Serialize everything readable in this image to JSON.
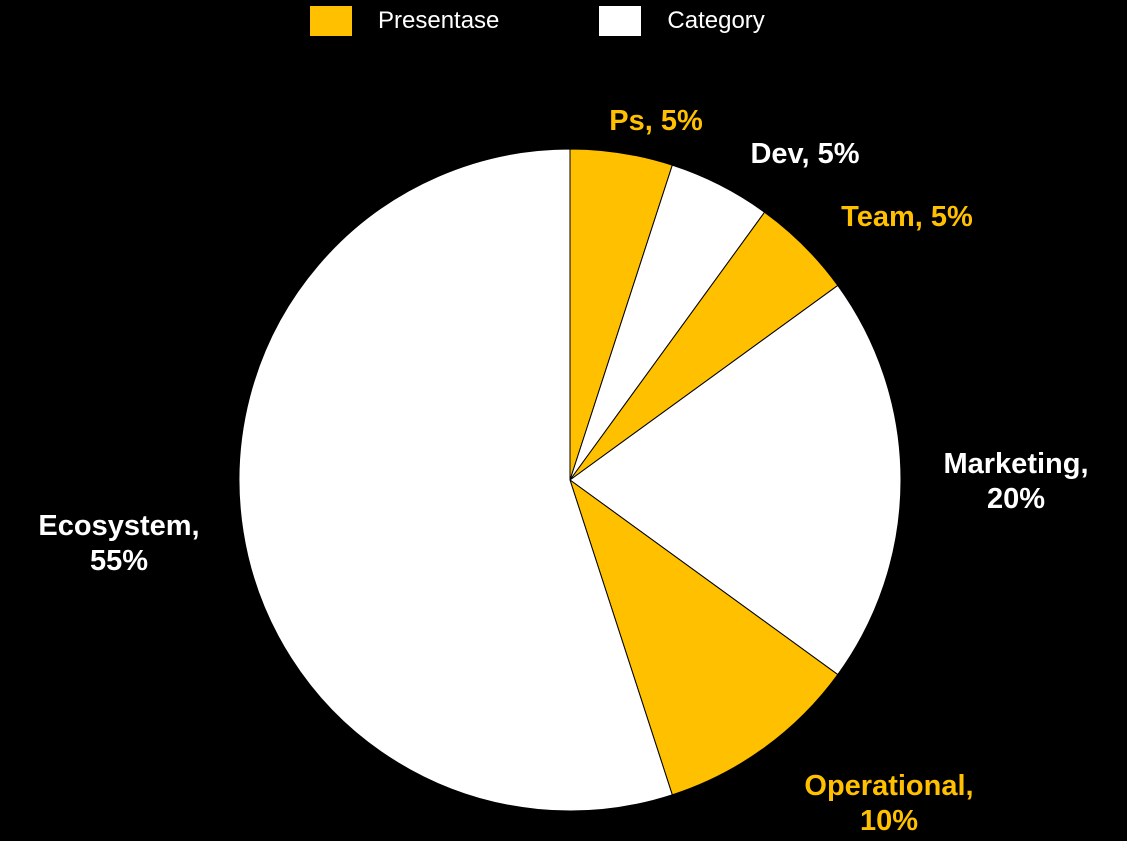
{
  "colors": {
    "background": "#000000",
    "yellow": "#FFC000",
    "white": "#FFFFFF",
    "slice_border": "#000000"
  },
  "legend": {
    "position": "top-center",
    "items": [
      {
        "label": "Presentase",
        "color": "#FFC000"
      },
      {
        "label": "Category",
        "color": "#FFFFFF"
      }
    ]
  },
  "chart_data": {
    "type": "pie",
    "start_angle": "12 o'clock",
    "direction": "clockwise",
    "series_names": [
      "Presentase",
      "Category"
    ],
    "slices": [
      {
        "category": "Ps",
        "value": 5,
        "label_lines": [
          "Ps, 5%"
        ],
        "color": "#FFC000"
      },
      {
        "category": "Dev",
        "value": 5,
        "label_lines": [
          "Dev, 5%"
        ],
        "color": "#FFFFFF"
      },
      {
        "category": "Team",
        "value": 5,
        "label_lines": [
          "Team, 5%"
        ],
        "color": "#FFC000"
      },
      {
        "category": "Marketing",
        "value": 20,
        "label_lines": [
          "Marketing,",
          "20%"
        ],
        "color": "#FFFFFF"
      },
      {
        "category": "Operational",
        "value": 10,
        "label_lines": [
          "Operational,",
          "10%"
        ],
        "color": "#FFC000"
      },
      {
        "category": "Ecosystem",
        "value": 55,
        "label_lines": [
          "Ecosystem,",
          "55%"
        ],
        "color": "#FFFFFF"
      }
    ]
  }
}
